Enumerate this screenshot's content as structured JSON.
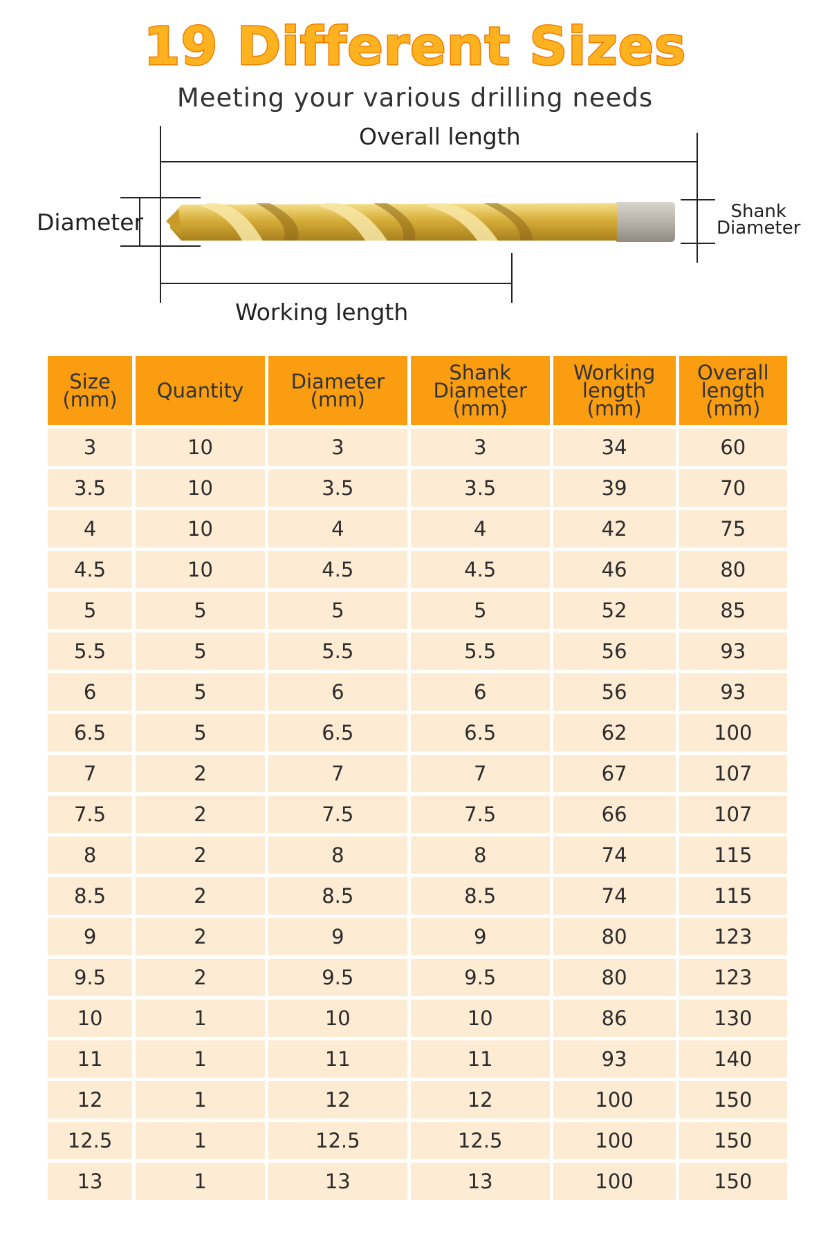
{
  "heading": {
    "title": "19 Different Sizes",
    "subtitle": "Meeting your various drilling needs"
  },
  "diagram": {
    "overall_length": "Overall length",
    "working_length": "Working length",
    "diameter": "Diameter",
    "shank_line1": "Shank",
    "shank_line2": "Diameter",
    "colors": {
      "gold": "#d9b23a",
      "gold_light": "#f3d87a",
      "shank": "#b3afa6"
    }
  },
  "table": {
    "headers": [
      [
        "Size",
        "(mm)"
      ],
      [
        "Quantity"
      ],
      [
        "Diameter",
        "(mm)"
      ],
      [
        "Shank",
        "Diameter",
        "(mm)"
      ],
      [
        "Working",
        "length",
        "(mm)"
      ],
      [
        "Overall",
        "length",
        "(mm)"
      ]
    ],
    "rows": [
      [
        "3",
        "10",
        "3",
        "3",
        "34",
        "60"
      ],
      [
        "3.5",
        "10",
        "3.5",
        "3.5",
        "39",
        "70"
      ],
      [
        "4",
        "10",
        "4",
        "4",
        "42",
        "75"
      ],
      [
        "4.5",
        "10",
        "4.5",
        "4.5",
        "46",
        "80"
      ],
      [
        "5",
        "5",
        "5",
        "5",
        "52",
        "85"
      ],
      [
        "5.5",
        "5",
        "5.5",
        "5.5",
        "56",
        "93"
      ],
      [
        "6",
        "5",
        "6",
        "6",
        "56",
        "93"
      ],
      [
        "6.5",
        "5",
        "6.5",
        "6.5",
        "62",
        "100"
      ],
      [
        "7",
        "2",
        "7",
        "7",
        "67",
        "107"
      ],
      [
        "7.5",
        "2",
        "7.5",
        "7.5",
        "66",
        "107"
      ],
      [
        "8",
        "2",
        "8",
        "8",
        "74",
        "115"
      ],
      [
        "8.5",
        "2",
        "8.5",
        "8.5",
        "74",
        "115"
      ],
      [
        "9",
        "2",
        "9",
        "9",
        "80",
        "123"
      ],
      [
        "9.5",
        "2",
        "9.5",
        "9.5",
        "80",
        "123"
      ],
      [
        "10",
        "1",
        "10",
        "10",
        "86",
        "130"
      ],
      [
        "11",
        "1",
        "11",
        "11",
        "93",
        "140"
      ],
      [
        "12",
        "1",
        "12",
        "12",
        "100",
        "150"
      ],
      [
        "12.5",
        "1",
        "12.5",
        "12.5",
        "100",
        "150"
      ],
      [
        "13",
        "1",
        "13",
        "13",
        "100",
        "150"
      ]
    ],
    "colors": {
      "header": "#fb9d10",
      "cell": "#fdebd4"
    }
  }
}
